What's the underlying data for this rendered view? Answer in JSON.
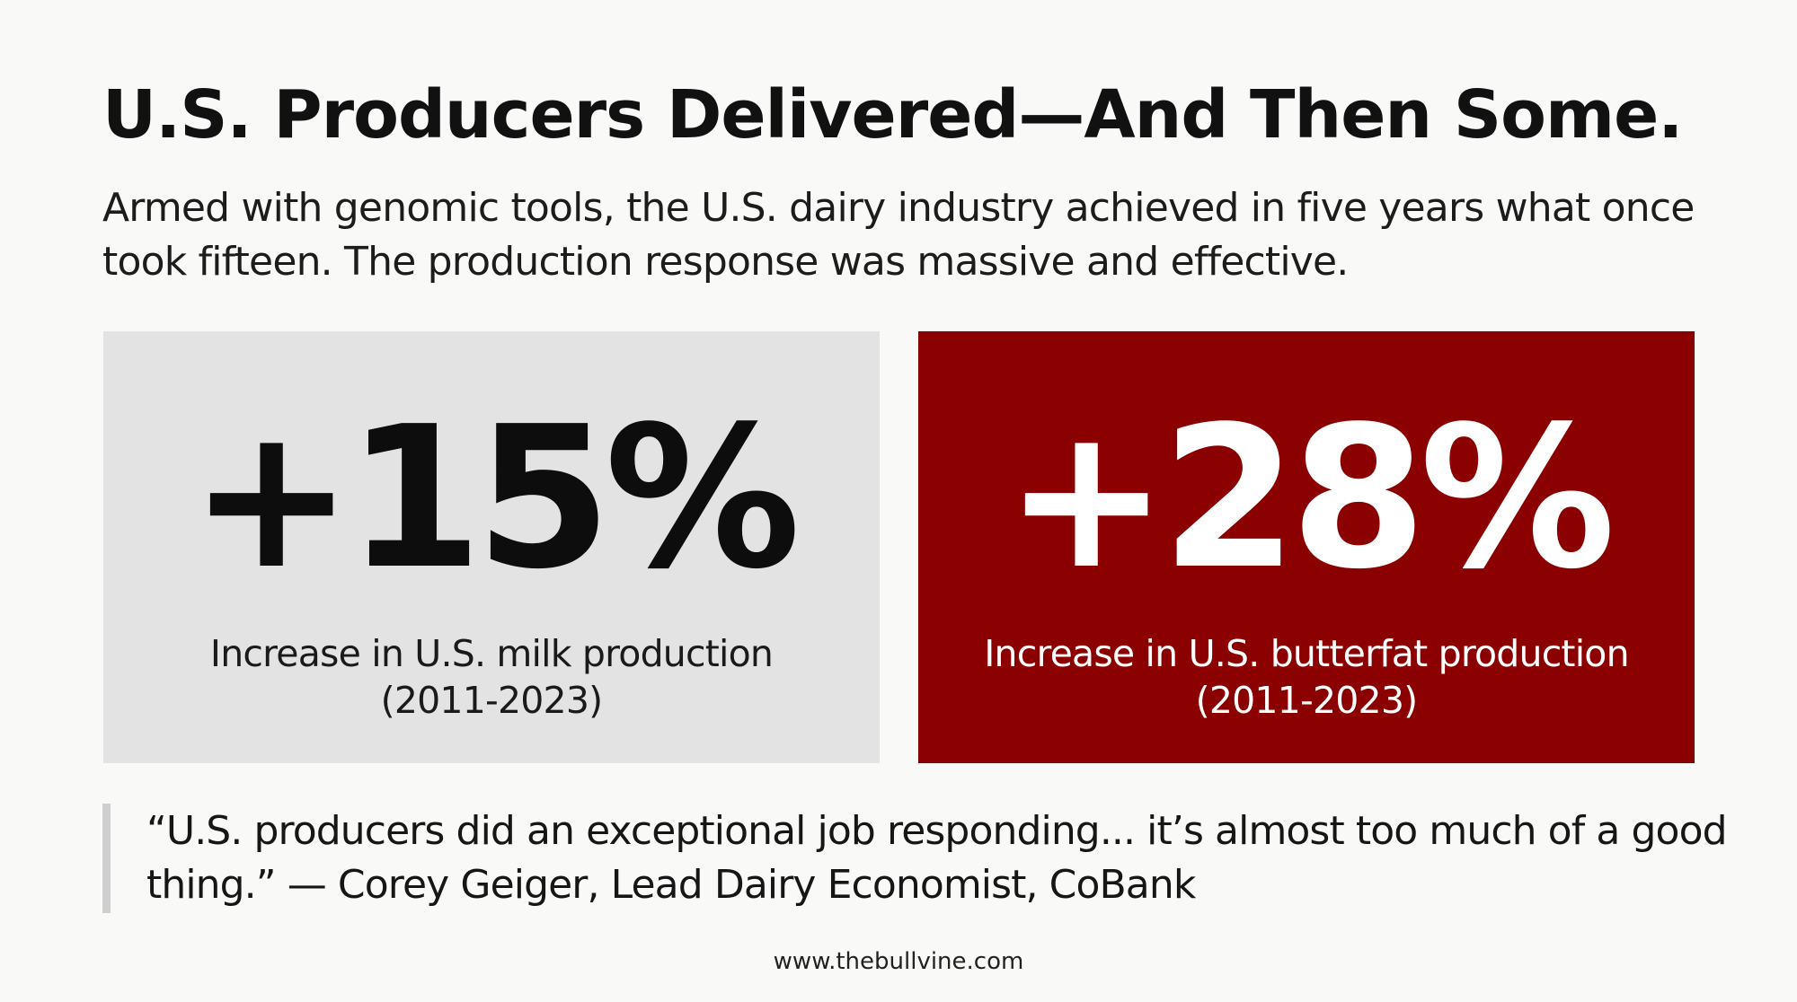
{
  "slide": {
    "title": "U.S. Producers Delivered—And Then Some.",
    "subtitle": "Armed with genomic tools, the U.S. dairy industry achieved in five years what once took fifteen. The production response was massive and effective."
  },
  "stats": [
    {
      "value": "+15%",
      "label": "Increase in U.S. milk production",
      "period": "(2011-2023)"
    },
    {
      "value": "+28%",
      "label": "Increase in U.S. butterfat production",
      "period": "(2011-2023)"
    }
  ],
  "quote": {
    "text": "“U.S. producers did an exceptional job responding... it’s almost too much of a good thing.” — Corey Geiger, Lead Dairy Economist, CoBank"
  },
  "footer": {
    "url": "www.thebullvine.com"
  },
  "colors": {
    "background": "#f9f9f8",
    "left_card": "#e3e3e3",
    "right_card": "#8b0000",
    "text_dark": "#111111",
    "text_light": "#ffffff",
    "quote_bar": "#cfcfcf"
  }
}
